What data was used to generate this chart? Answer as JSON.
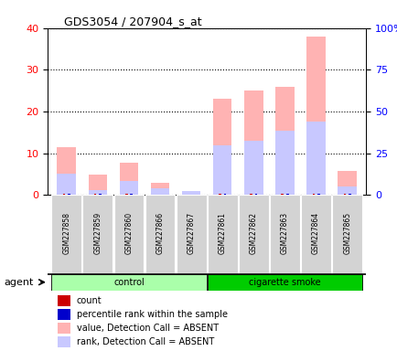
{
  "title": "GDS3054 / 207904_s_at",
  "samples": [
    "GSM227858",
    "GSM227859",
    "GSM227860",
    "GSM227866",
    "GSM227867",
    "GSM227861",
    "GSM227862",
    "GSM227863",
    "GSM227864",
    "GSM227865"
  ],
  "groups": [
    "control",
    "control",
    "control",
    "control",
    "control",
    "cigarette smoke",
    "cigarette smoke",
    "cigarette smoke",
    "cigarette smoke",
    "cigarette smoke"
  ],
  "value_absent": [
    11.5,
    4.8,
    7.8,
    3.0,
    1.0,
    23.0,
    25.0,
    26.0,
    38.0,
    5.8
  ],
  "rank_absent": [
    5.2,
    1.2,
    3.3,
    1.5,
    0.9,
    11.8,
    13.0,
    15.5,
    17.5,
    2.0
  ],
  "count_red": [
    0.3,
    0.2,
    0.3,
    0.15,
    0.1,
    0.3,
    0.25,
    0.3,
    0.3,
    0.2
  ],
  "percentile_rank_blue": [
    0.3,
    0.2,
    0.3,
    0.15,
    0.1,
    0.3,
    0.25,
    0.3,
    0.3,
    0.2
  ],
  "group_labels": [
    "control",
    "cigarette smoke"
  ],
  "group_colors_light": [
    "#aaffaa",
    "#55ee55"
  ],
  "group_colors_dark": [
    "#00cc00",
    "#00aa00"
  ],
  "ylim_left": [
    0,
    40
  ],
  "ylim_right": [
    0,
    100
  ],
  "yticks_left": [
    0,
    10,
    20,
    30,
    40
  ],
  "yticks_right": [
    0,
    25,
    50,
    75,
    100
  ],
  "bar_color_absent": "#ffb3b3",
  "bar_color_rank_absent": "#c8c8ff",
  "color_count": "#cc0000",
  "color_percentile": "#0000cc",
  "bg_color": "#ffffff",
  "agent_label": "agent"
}
